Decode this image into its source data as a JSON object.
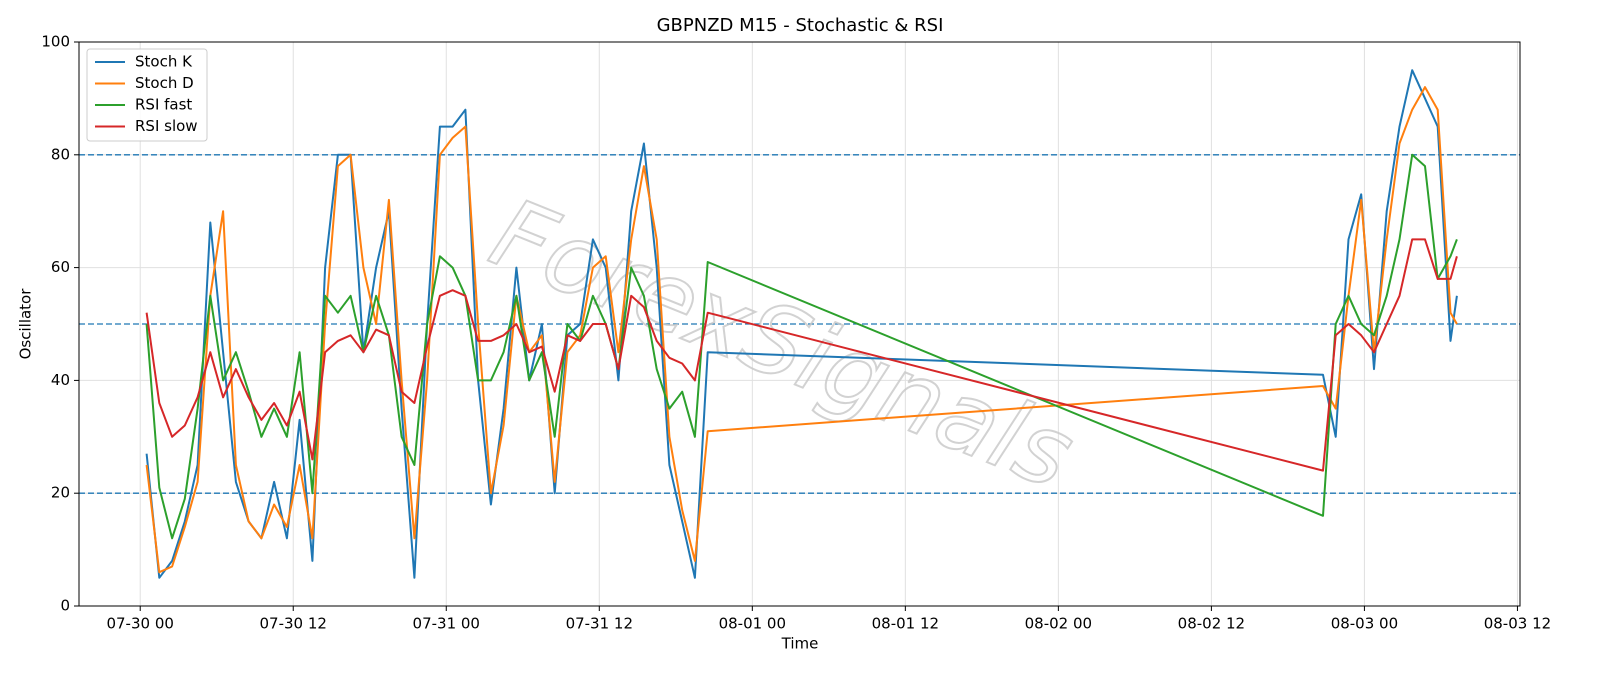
{
  "chart_data": {
    "type": "line",
    "title": "GBPNZD M15 - Stochastic & RSI",
    "xlabel": "Time",
    "ylabel": "Oscillator",
    "watermark": "ForexSignals",
    "x": [
      0.5,
      1.5,
      2.5,
      3.5,
      4.5,
      5.5,
      6.5,
      7.5,
      8.5,
      9.5,
      10.5,
      11.5,
      12.5,
      13.5,
      14.5,
      15.5,
      16.5,
      17.5,
      18.5,
      19.5,
      20.5,
      21.5,
      22.5,
      23.5,
      24.5,
      25.5,
      26.5,
      27.5,
      28.5,
      29.5,
      30.5,
      31.5,
      32.5,
      33.5,
      34.5,
      35.5,
      36.5,
      37.5,
      38.5,
      39.5,
      40.5,
      41.5,
      42.5,
      43.5,
      44.5,
      92.75,
      93.75,
      94.75,
      95.75,
      96.75,
      97.75,
      98.75,
      99.75,
      100.75,
      101.75,
      102.75,
      103.25
    ],
    "series": [
      {
        "name": "Stoch K",
        "color": "#1f77b4",
        "values": [
          27,
          5,
          8,
          15,
          25,
          68,
          45,
          22,
          15,
          12,
          22,
          12,
          33,
          8,
          60,
          80,
          80,
          45,
          60,
          70,
          35,
          5,
          50,
          85,
          85,
          88,
          40,
          18,
          35,
          60,
          40,
          50,
          20,
          48,
          50,
          65,
          60,
          40,
          70,
          82,
          60,
          25,
          15,
          5,
          45,
          41,
          30,
          65,
          73,
          42,
          70,
          85,
          95,
          90,
          85,
          47,
          55
        ]
      },
      {
        "name": "Stoch D",
        "color": "#ff7f0e",
        "values": [
          25,
          6,
          7,
          14,
          22,
          55,
          70,
          25,
          15,
          12,
          18,
          14,
          25,
          12,
          50,
          78,
          80,
          60,
          50,
          72,
          40,
          12,
          40,
          80,
          83,
          85,
          50,
          20,
          32,
          55,
          45,
          48,
          22,
          45,
          48,
          60,
          62,
          45,
          65,
          78,
          65,
          30,
          17,
          8,
          31,
          39,
          35,
          55,
          72,
          45,
          65,
          82,
          88,
          92,
          88,
          52,
          50
        ]
      },
      {
        "name": "RSI fast",
        "color": "#2ca02c",
        "values": [
          50,
          21,
          12,
          19,
          35,
          55,
          40,
          45,
          38,
          30,
          35,
          30,
          45,
          20,
          55,
          52,
          55,
          45,
          55,
          48,
          30,
          25,
          50,
          62,
          60,
          55,
          40,
          40,
          45,
          55,
          40,
          45,
          30,
          50,
          47,
          55,
          50,
          42,
          60,
          55,
          42,
          35,
          38,
          30,
          61,
          16,
          50,
          55,
          50,
          48,
          55,
          65,
          80,
          78,
          58,
          62,
          65
        ]
      },
      {
        "name": "RSI slow",
        "color": "#d62728",
        "values": [
          52,
          36,
          30,
          32,
          37,
          45,
          37,
          42,
          37,
          33,
          36,
          32,
          38,
          26,
          45,
          47,
          48,
          45,
          49,
          48,
          38,
          36,
          46,
          55,
          56,
          55,
          47,
          47,
          48,
          50,
          45,
          46,
          38,
          48,
          47,
          50,
          50,
          42,
          55,
          53,
          47,
          44,
          43,
          40,
          52,
          24,
          48,
          50,
          48,
          45,
          50,
          55,
          65,
          65,
          58,
          58,
          62
        ]
      }
    ],
    "xlim": [
      -4.8,
      108.2
    ],
    "ylim": [
      0,
      100
    ],
    "xticks": [
      {
        "value": 0,
        "label": "07-30 00"
      },
      {
        "value": 12,
        "label": "07-30 12"
      },
      {
        "value": 24,
        "label": "07-31 00"
      },
      {
        "value": 36,
        "label": "07-31 12"
      },
      {
        "value": 48,
        "label": "08-01 00"
      },
      {
        "value": 60,
        "label": "08-01 12"
      },
      {
        "value": 72,
        "label": "08-02 00"
      },
      {
        "value": 84,
        "label": "08-02 12"
      },
      {
        "value": 96,
        "label": "08-03 00"
      },
      {
        "value": 108,
        "label": "08-03 12"
      }
    ],
    "yticks": [
      0,
      20,
      40,
      60,
      80,
      100
    ],
    "hlines": [
      20,
      50,
      80
    ],
    "hline_color": "#1f77b4",
    "grid": true,
    "legend": "upper left"
  }
}
